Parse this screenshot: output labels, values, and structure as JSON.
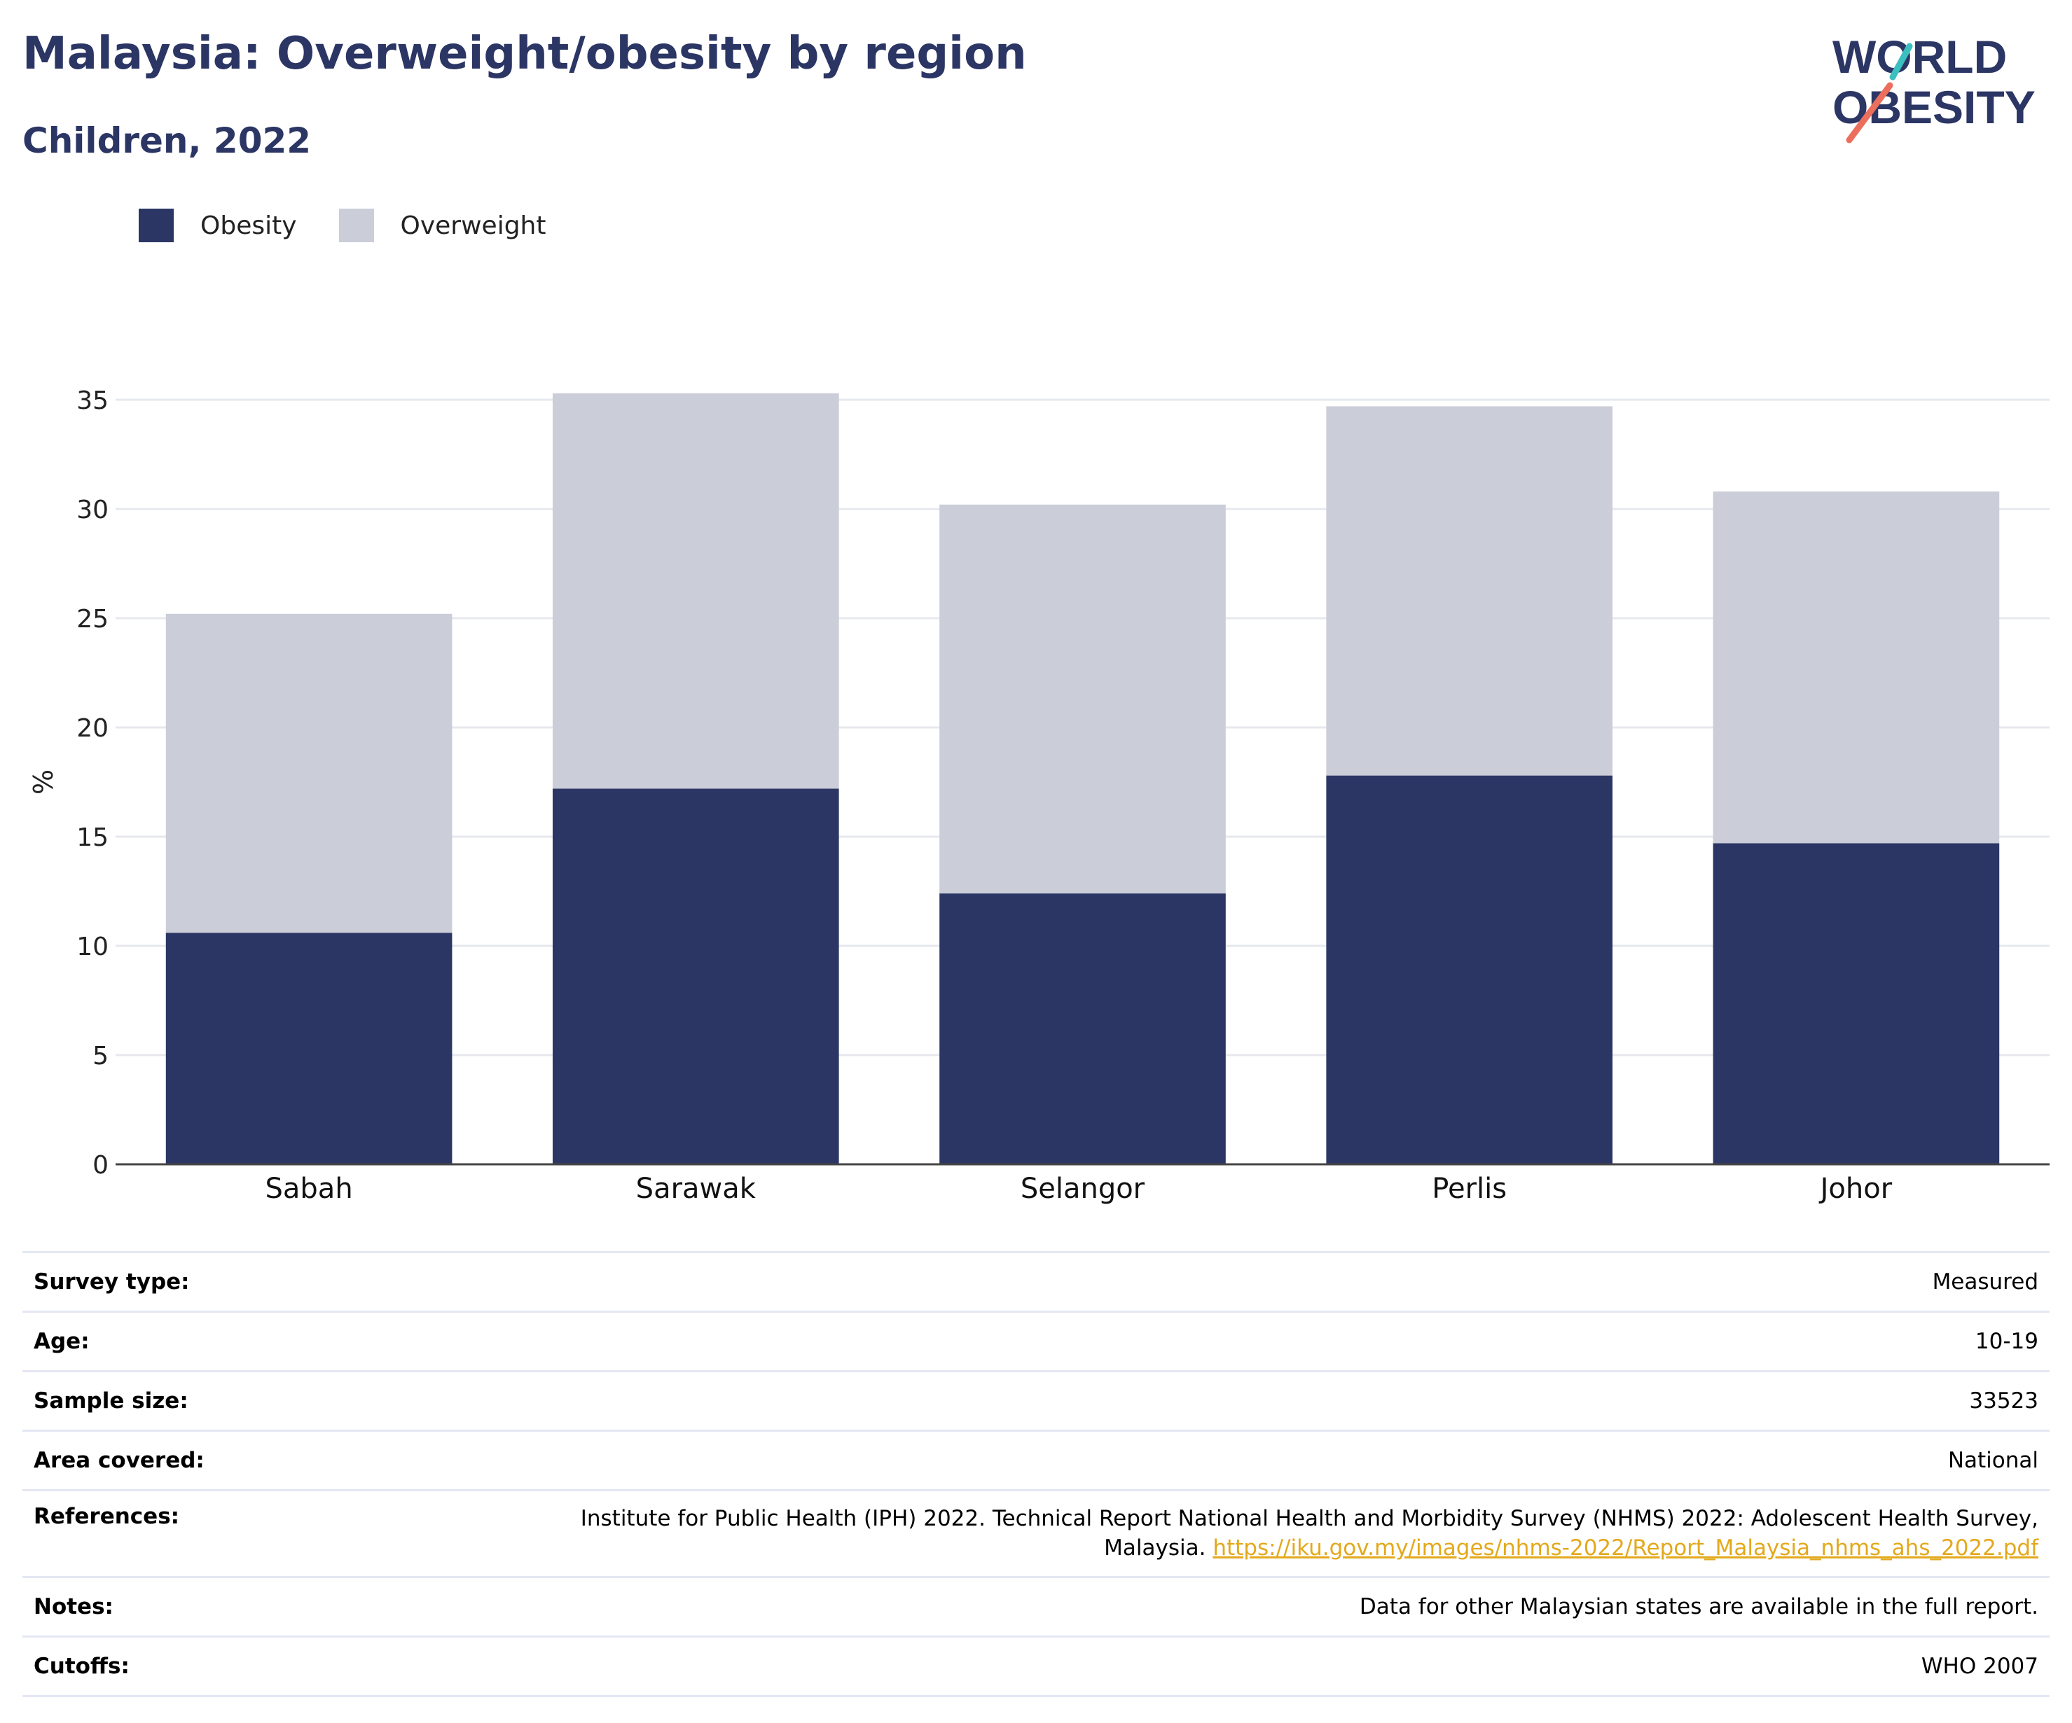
{
  "header": {
    "title": "Malaysia: Overweight/obesity by region",
    "subtitle": "Children, 2022"
  },
  "logo": {
    "line1": "WORLD",
    "line2": "OBESITY"
  },
  "legend": [
    {
      "label": "Obesity",
      "color": "#2b3664"
    },
    {
      "label": "Overweight",
      "color": "#cbcdd8"
    }
  ],
  "chart_data": {
    "type": "bar",
    "stacked": true,
    "categories": [
      "Sabah",
      "Sarawak",
      "Selangor",
      "Perlis",
      "Johor"
    ],
    "series": [
      {
        "name": "Obesity",
        "color": "#2b3664",
        "values": [
          10.6,
          17.2,
          12.4,
          17.8,
          14.7
        ]
      },
      {
        "name": "Overweight",
        "color": "#cbcdd8",
        "values": [
          14.6,
          18.1,
          17.8,
          16.9,
          16.1
        ]
      }
    ],
    "ylabel": "%",
    "ylim": [
      0,
      35
    ],
    "yticks": [
      0,
      5,
      10,
      15,
      20,
      25,
      30,
      35
    ],
    "grid": true,
    "legend_position": "top-left"
  },
  "meta": {
    "survey_type": {
      "key": "Survey type:",
      "value": "Measured"
    },
    "age": {
      "key": "Age:",
      "value": "10-19"
    },
    "sample_size": {
      "key": "Sample size:",
      "value": "33523"
    },
    "area": {
      "key": "Area covered:",
      "value": "National"
    },
    "references": {
      "key": "References:",
      "text_line1": "Institute for Public Health (IPH) 2022. Technical Report National Health and Morbidity Survey (NHMS) 2022: Adolescent Health Survey,",
      "text_line2": "Malaysia.",
      "link": "https://iku.gov.my/images/nhms-2022/Report_Malaysia_nhms_ahs_2022.pdf"
    },
    "notes": {
      "key": "Notes:",
      "value": "Data for other Malaysian states are available in the full report."
    },
    "cutoffs": {
      "key": "Cutoffs:",
      "value": "WHO 2007"
    }
  }
}
